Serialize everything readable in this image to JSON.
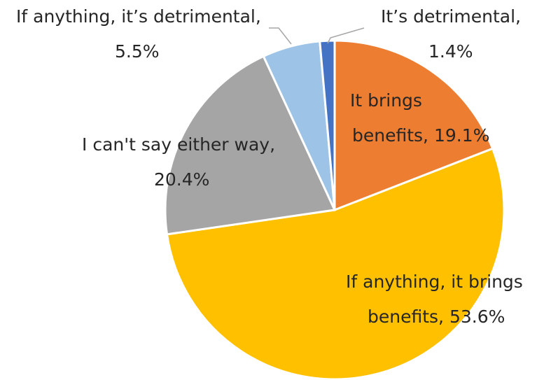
{
  "chart_data": {
    "type": "pie",
    "title": "",
    "start_angle_deg": 0,
    "direction": "clockwise",
    "slices": [
      {
        "label": "It brings benefits",
        "value": 19.1,
        "color": "#ED7D31",
        "label_lines": [
          "It brings",
          "benefits, 19.1%"
        ]
      },
      {
        "label": "If anything, it brings benefits",
        "value": 53.6,
        "color": "#FFC000",
        "label_lines": [
          "If anything, it brings",
          "benefits, 53.6%"
        ]
      },
      {
        "label": "I can't say either way",
        "value": 20.4,
        "color": "#A5A5A5",
        "label_lines": [
          "I can't say either way,",
          "20.4%"
        ]
      },
      {
        "label": "If anything, it’s detrimental",
        "value": 5.5,
        "color": "#9DC3E6",
        "label_lines": [
          "If anything, it’s detrimental,",
          "5.5%"
        ]
      },
      {
        "label": "It’s detrimental",
        "value": 1.4,
        "color": "#4472C4",
        "label_lines": [
          "It’s detrimental,",
          "1.4%"
        ]
      }
    ],
    "legend": "none"
  }
}
